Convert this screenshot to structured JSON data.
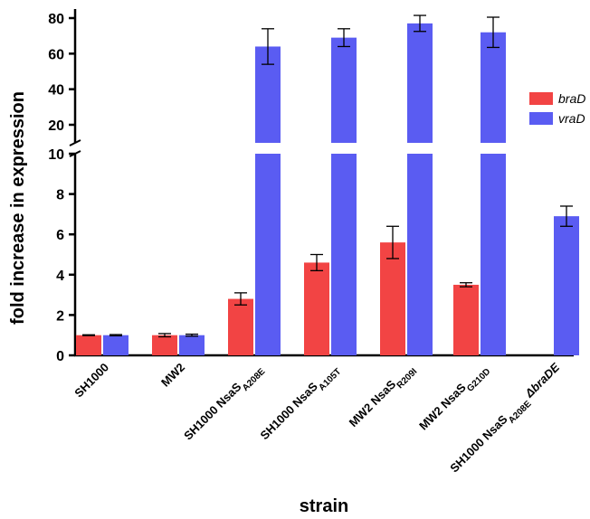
{
  "chart_data": {
    "type": "bar",
    "xlabel": "strain",
    "ylabel": "fold increase in expression",
    "y_axis_break": {
      "lower_range": [
        0,
        10
      ],
      "upper_range": [
        10,
        85
      ]
    },
    "lower_ticks": [
      0,
      2,
      4,
      6,
      8,
      10
    ],
    "upper_ticks": [
      20,
      40,
      60,
      80
    ],
    "categories": [
      {
        "main": "SH1000",
        "sub": ""
      },
      {
        "main": "MW2",
        "sub": ""
      },
      {
        "main": "SH1000 NsaS",
        "sub": "A208E"
      },
      {
        "main": "SH1000 NsaS",
        "sub": "A105T"
      },
      {
        "main": "MW2 NsaS",
        "sub": "R209I"
      },
      {
        "main": "MW2 NsaS",
        "sub": "G210D"
      },
      {
        "main": "SH1000 NsaS",
        "sub": "A208E",
        "suffix": " ΔbraDE"
      }
    ],
    "series": [
      {
        "name": "braD",
        "color": "#f24444",
        "values": [
          1.0,
          1.0,
          2.8,
          4.6,
          5.6,
          3.5,
          null
        ],
        "errors": [
          0.02,
          0.08,
          0.3,
          0.4,
          0.8,
          0.1,
          null
        ]
      },
      {
        "name": "vraD",
        "color": "#5a5cf2",
        "values": [
          1.0,
          1.0,
          64,
          69,
          77,
          72,
          6.9
        ],
        "errors": [
          0.03,
          0.05,
          10,
          5,
          4.5,
          8.5,
          0.5
        ]
      }
    ],
    "legend": {
      "position": "right",
      "entries": [
        "braD",
        "vraD"
      ]
    },
    "grid": false
  }
}
